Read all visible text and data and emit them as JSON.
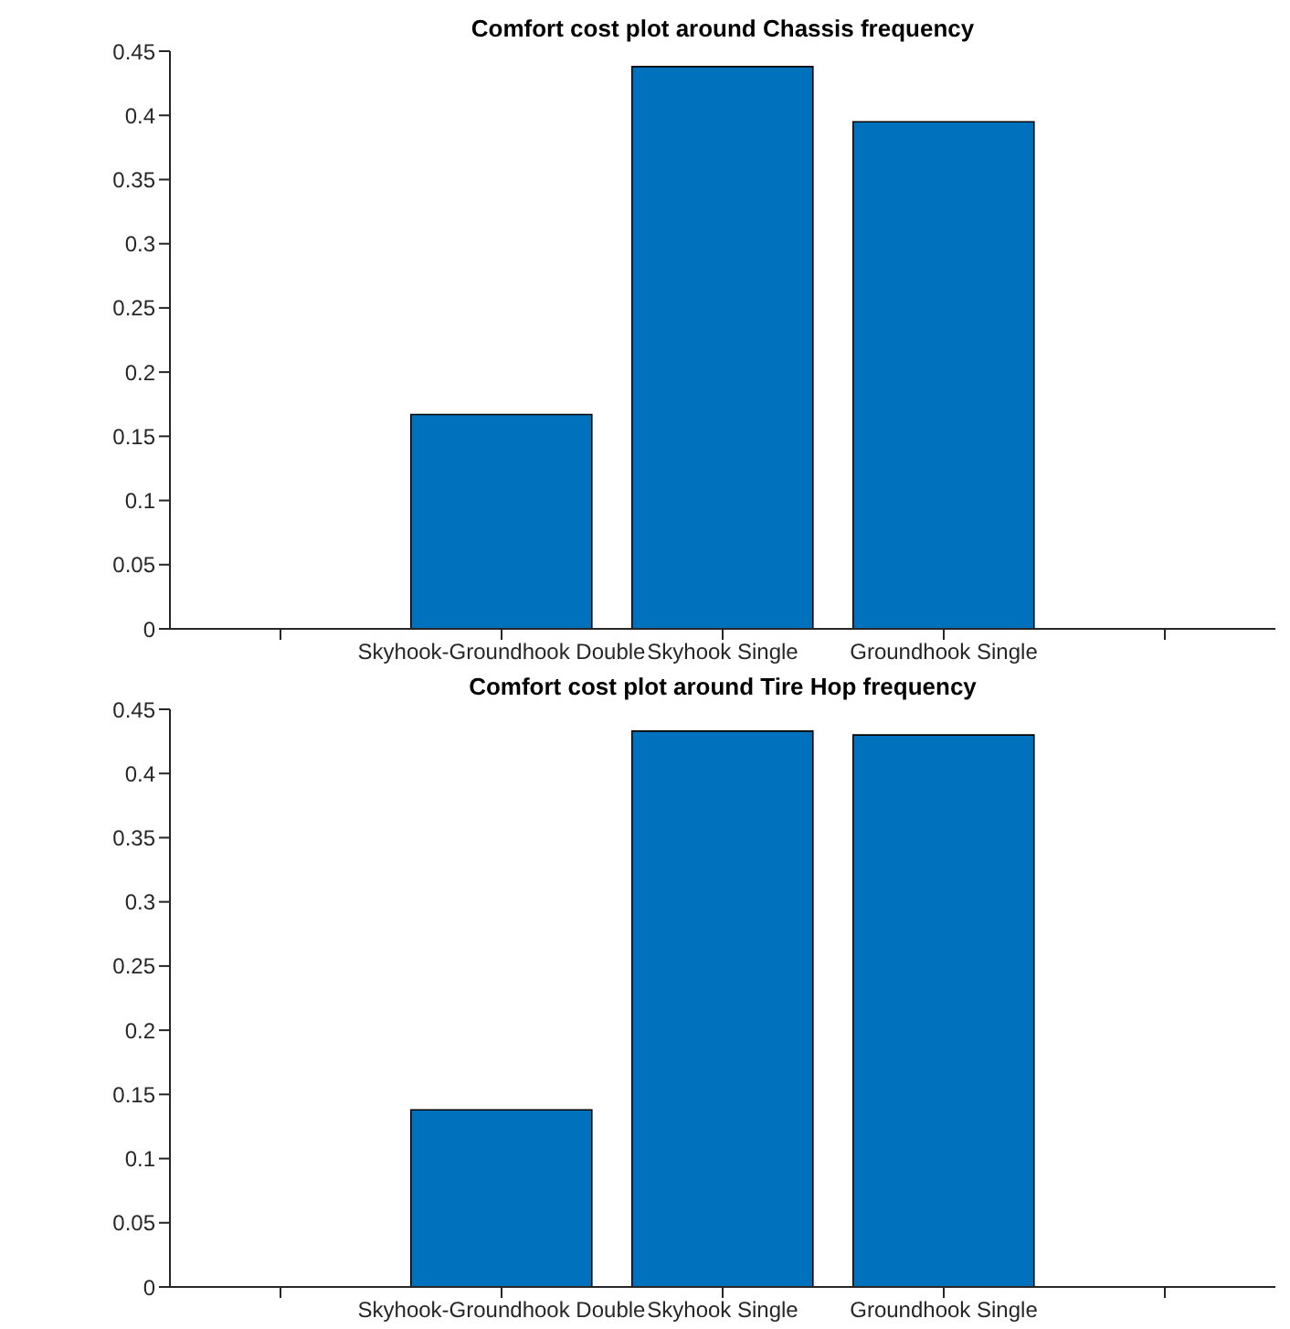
{
  "chart_data": [
    {
      "type": "bar",
      "title": "Comfort cost plot around Chassis frequency",
      "categories": [
        null,
        "Skyhook-Groundhook Double",
        "Skyhook Single",
        "Groundhook Single",
        null
      ],
      "values": [
        null,
        0.167,
        0.438,
        0.395,
        null
      ],
      "color": "#0072bd",
      "ylim": [
        0,
        0.45
      ],
      "yticks": [
        0,
        0.05,
        0.1,
        0.15,
        0.2,
        0.25,
        0.3,
        0.35,
        0.4,
        0.45
      ],
      "grid": false,
      "legend": false
    },
    {
      "type": "bar",
      "title": "Comfort cost plot around Tire Hop frequency",
      "categories": [
        null,
        "Skyhook-Groundhook Double",
        "Skyhook Single",
        "Groundhook Single",
        null
      ],
      "values": [
        null,
        0.138,
        0.433,
        0.43,
        null
      ],
      "color": "#0072bd",
      "ylim": [
        0,
        0.45
      ],
      "yticks": [
        0,
        0.05,
        0.1,
        0.15,
        0.2,
        0.25,
        0.3,
        0.35,
        0.4,
        0.45
      ],
      "grid": false,
      "legend": false
    }
  ]
}
